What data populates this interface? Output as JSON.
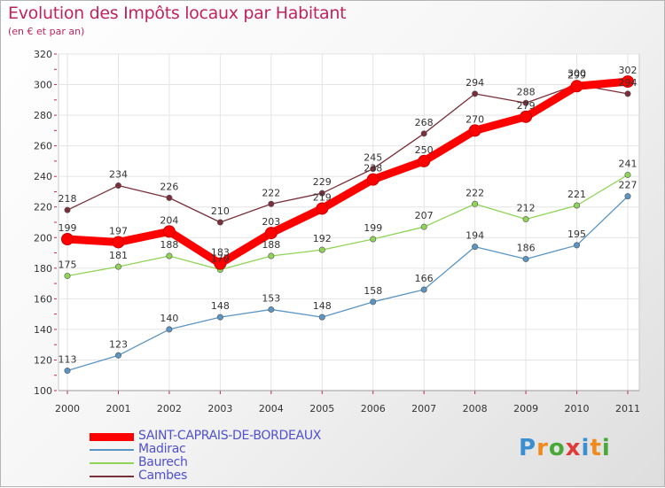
{
  "header": {
    "title": "Evolution des Impôts locaux par Habitant",
    "subtitle": "(en € et par an)"
  },
  "logo": {
    "text": "Proxiti",
    "letters": [
      "P",
      "r",
      "o",
      "x",
      "i",
      "t",
      "i"
    ]
  },
  "chart_data": {
    "type": "line",
    "title": "Evolution des Impôts locaux par Habitant",
    "subtitle": "(en € et par an)",
    "xlabel": "",
    "ylabel": "",
    "x": [
      "2000",
      "2001",
      "2002",
      "2003",
      "2004",
      "2005",
      "2006",
      "2007",
      "2008",
      "2009",
      "2010",
      "2011"
    ],
    "ylim": [
      100,
      320
    ],
    "yticks": [
      100,
      120,
      140,
      160,
      180,
      200,
      220,
      240,
      260,
      280,
      300,
      320
    ],
    "grid": true,
    "legend_position": "bottom-left",
    "series": [
      {
        "name": "SAINT-CAPRAIS-DE-BORDEAUX",
        "color": "#ff0000",
        "values": [
          199,
          197,
          204,
          183,
          203,
          219,
          238,
          250,
          270,
          279,
          299,
          302
        ]
      },
      {
        "name": "Madirac",
        "color": "#5b95c4",
        "values": [
          113,
          123,
          140,
          148,
          153,
          148,
          158,
          166,
          194,
          186,
          195,
          227
        ]
      },
      {
        "name": "Baurech",
        "color": "#8fd456",
        "values": [
          175,
          181,
          188,
          179,
          188,
          192,
          199,
          207,
          222,
          212,
          221,
          241
        ]
      },
      {
        "name": "Cambes",
        "color": "#7a2f3a",
        "values": [
          218,
          234,
          226,
          210,
          222,
          229,
          245,
          268,
          294,
          288,
          300,
          294
        ]
      }
    ]
  }
}
